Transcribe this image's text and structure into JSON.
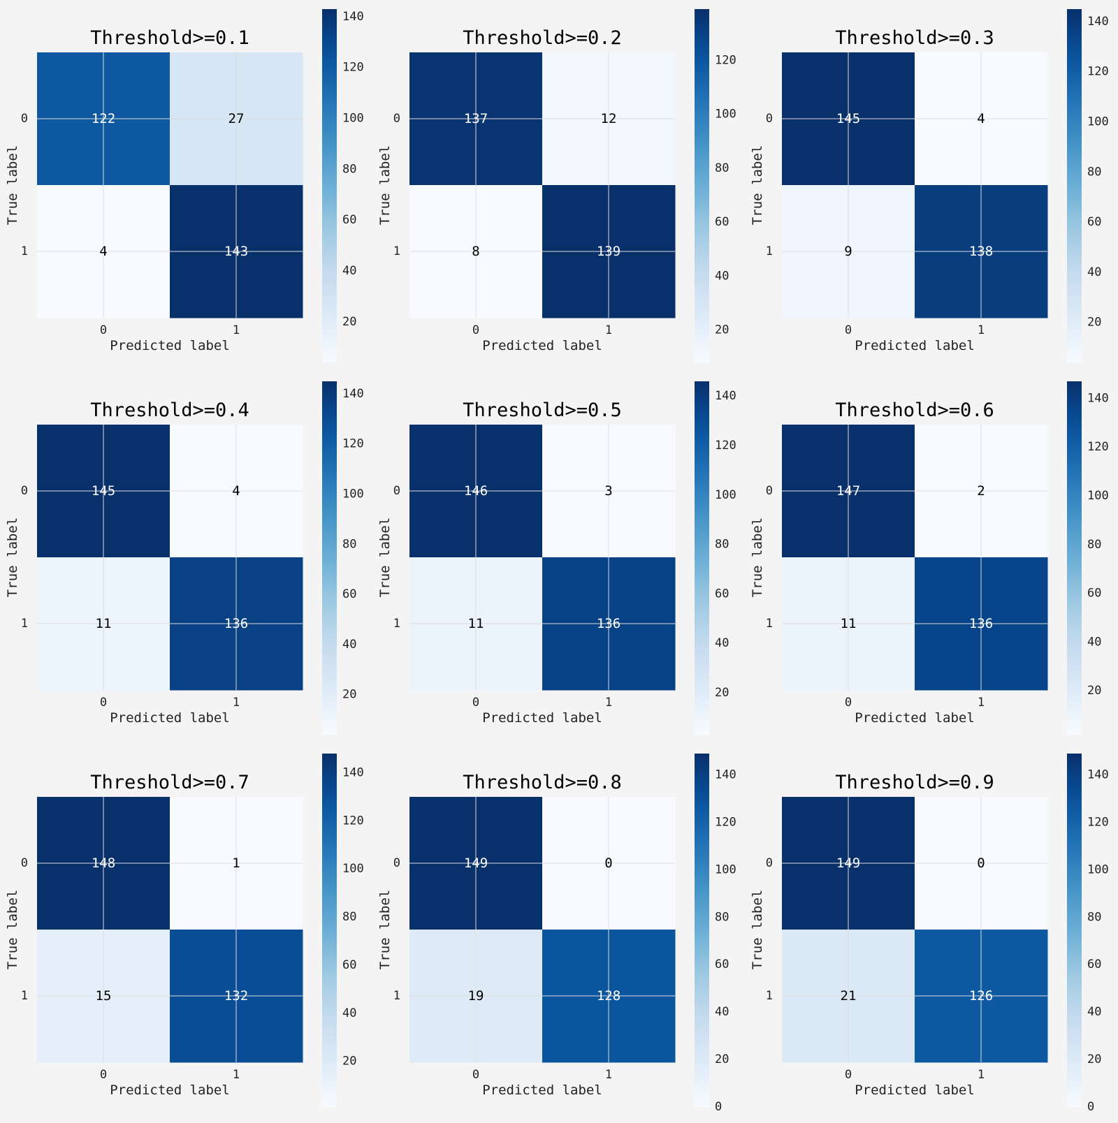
{
  "chart_data": [
    {
      "type": "heatmap",
      "title": "Threshold>=0.1",
      "xlabel": "Predicted label",
      "ylabel": "True label",
      "x_ticks": [
        "0",
        "1"
      ],
      "y_ticks": [
        "0",
        "1"
      ],
      "values": [
        [
          122,
          27
        ],
        [
          4,
          143
        ]
      ],
      "colormap": "Blues",
      "colorbar_ticks": [
        20,
        40,
        60,
        80,
        100,
        120,
        140
      ],
      "vmin": 4,
      "vmax": 143,
      "grid": true
    },
    {
      "type": "heatmap",
      "title": "Threshold>=0.2",
      "xlabel": "Predicted label",
      "ylabel": "True label",
      "x_ticks": [
        "0",
        "1"
      ],
      "y_ticks": [
        "0",
        "1"
      ],
      "values": [
        [
          137,
          12
        ],
        [
          8,
          139
        ]
      ],
      "colormap": "Blues",
      "colorbar_ticks": [
        20,
        40,
        60,
        80,
        100,
        120
      ],
      "vmin": 8,
      "vmax": 139,
      "grid": true
    },
    {
      "type": "heatmap",
      "title": "Threshold>=0.3",
      "xlabel": "Predicted label",
      "ylabel": "True label",
      "x_ticks": [
        "0",
        "1"
      ],
      "y_ticks": [
        "0",
        "1"
      ],
      "values": [
        [
          145,
          4
        ],
        [
          9,
          138
        ]
      ],
      "colormap": "Blues",
      "colorbar_ticks": [
        20,
        40,
        60,
        80,
        100,
        120,
        140
      ],
      "vmin": 4,
      "vmax": 145,
      "grid": true
    },
    {
      "type": "heatmap",
      "title": "Threshold>=0.4",
      "xlabel": "Predicted label",
      "ylabel": "True label",
      "x_ticks": [
        "0",
        "1"
      ],
      "y_ticks": [
        "0",
        "1"
      ],
      "values": [
        [
          145,
          4
        ],
        [
          11,
          136
        ]
      ],
      "colormap": "Blues",
      "colorbar_ticks": [
        20,
        40,
        60,
        80,
        100,
        120,
        140
      ],
      "vmin": 4,
      "vmax": 145,
      "grid": true
    },
    {
      "type": "heatmap",
      "title": "Threshold>=0.5",
      "xlabel": "Predicted label",
      "ylabel": "True label",
      "x_ticks": [
        "0",
        "1"
      ],
      "y_ticks": [
        "0",
        "1"
      ],
      "values": [
        [
          146,
          3
        ],
        [
          11,
          136
        ]
      ],
      "colormap": "Blues",
      "colorbar_ticks": [
        20,
        40,
        60,
        80,
        100,
        120,
        140
      ],
      "vmin": 3,
      "vmax": 146,
      "grid": true
    },
    {
      "type": "heatmap",
      "title": "Threshold>=0.6",
      "xlabel": "Predicted label",
      "ylabel": "True label",
      "x_ticks": [
        "0",
        "1"
      ],
      "y_ticks": [
        "0",
        "1"
      ],
      "values": [
        [
          147,
          2
        ],
        [
          11,
          136
        ]
      ],
      "colormap": "Blues",
      "colorbar_ticks": [
        20,
        40,
        60,
        80,
        100,
        120,
        140
      ],
      "vmin": 2,
      "vmax": 147,
      "grid": true
    },
    {
      "type": "heatmap",
      "title": "Threshold>=0.7",
      "xlabel": "Predicted label",
      "ylabel": "True label",
      "x_ticks": [
        "0",
        "1"
      ],
      "y_ticks": [
        "0",
        "1"
      ],
      "values": [
        [
          148,
          1
        ],
        [
          15,
          132
        ]
      ],
      "colormap": "Blues",
      "colorbar_ticks": [
        20,
        40,
        60,
        80,
        100,
        120,
        140
      ],
      "vmin": 1,
      "vmax": 148,
      "grid": true
    },
    {
      "type": "heatmap",
      "title": "Threshold>=0.8",
      "xlabel": "Predicted label",
      "ylabel": "True label",
      "x_ticks": [
        "0",
        "1"
      ],
      "y_ticks": [
        "0",
        "1"
      ],
      "values": [
        [
          149,
          0
        ],
        [
          19,
          128
        ]
      ],
      "colormap": "Blues",
      "colorbar_ticks": [
        0,
        20,
        40,
        60,
        80,
        100,
        120,
        140
      ],
      "vmin": 0,
      "vmax": 149,
      "grid": true
    },
    {
      "type": "heatmap",
      "title": "Threshold>=0.9",
      "xlabel": "Predicted label",
      "ylabel": "True label",
      "x_ticks": [
        "0",
        "1"
      ],
      "y_ticks": [
        "0",
        "1"
      ],
      "values": [
        [
          149,
          0
        ],
        [
          21,
          126
        ]
      ],
      "colormap": "Blues",
      "colorbar_ticks": [
        0,
        20,
        40,
        60,
        80,
        100,
        120,
        140
      ],
      "vmin": 0,
      "vmax": 149,
      "grid": true
    }
  ]
}
